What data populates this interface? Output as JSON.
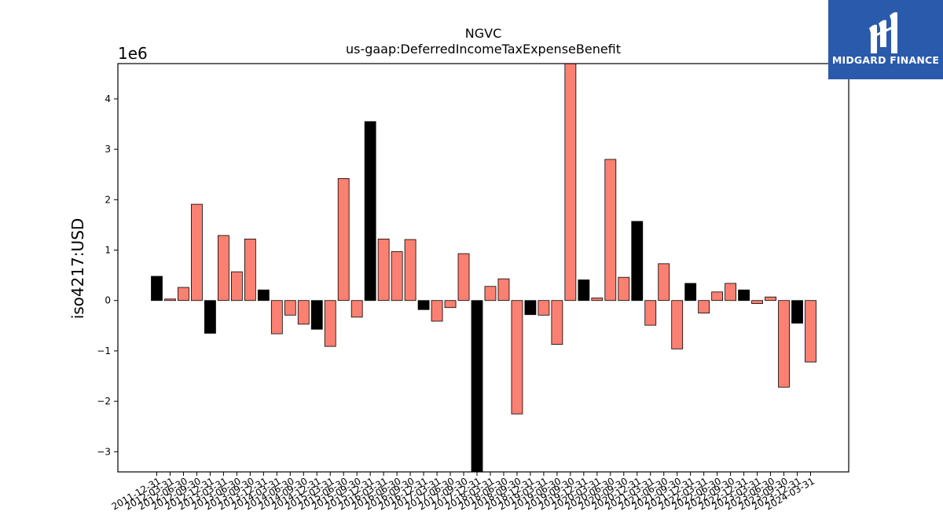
{
  "title": "NGVC",
  "subtitle": "us-gaap:DeferredIncomeTaxExpenseBenefit",
  "logo": {
    "text": "MIDGARD FINANCE",
    "bg_color": "#2a5aac"
  },
  "chart_data": {
    "type": "bar",
    "title": "NGVC",
    "subtitle": "us-gaap:DeferredIncomeTaxExpenseBenefit",
    "xlabel": "",
    "ylabel": "iso4217:USD",
    "y_offset_label": "1e6",
    "ylim": [
      -3.4,
      4.7
    ],
    "yticks": [
      -3,
      -2,
      -1,
      0,
      1,
      2,
      3,
      4
    ],
    "ytick_labels": [
      "−3",
      "−2",
      "−1",
      "0",
      "1",
      "2",
      "3",
      "4"
    ],
    "grid": false,
    "colors": {
      "annual": "#000000",
      "quarterly": "#fa8072",
      "edge": "#000000"
    },
    "categories": [
      "2011-12-31",
      "2012-03-31",
      "2012-06-30",
      "2012-09-30",
      "2012-12-31",
      "2013-03-31",
      "2013-06-30",
      "2013-09-30",
      "2013-12-31",
      "2014-03-31",
      "2014-06-30",
      "2014-09-30",
      "2014-12-31",
      "2015-03-31",
      "2015-06-30",
      "2015-09-30",
      "2015-12-31",
      "2016-03-31",
      "2016-06-30",
      "2016-09-30",
      "2016-12-31",
      "2017-03-31",
      "2017-06-30",
      "2017-09-30",
      "2017-12-31",
      "2018-03-31",
      "2018-06-30",
      "2018-09-30",
      "2018-12-31",
      "2019-03-31",
      "2019-06-30",
      "2019-09-30",
      "2019-12-31",
      "2020-03-31",
      "2020-06-30",
      "2020-09-30",
      "2020-12-31",
      "2021-03-31",
      "2021-06-30",
      "2021-09-30",
      "2021-12-31",
      "2022-03-31",
      "2022-06-30",
      "2022-09-30",
      "2022-12-31",
      "2023-03-31",
      "2023-06-30",
      "2023-09-30",
      "2023-12-31",
      "2024-03-31"
    ],
    "values": [
      0.48,
      0.03,
      0.26,
      1.91,
      -0.65,
      1.29,
      0.57,
      1.22,
      0.21,
      -0.66,
      -0.29,
      -0.47,
      -0.57,
      -0.91,
      2.42,
      -0.33,
      3.55,
      1.22,
      0.97,
      1.21,
      -0.18,
      -0.41,
      -0.14,
      0.93,
      -3.4,
      0.28,
      0.43,
      -2.25,
      -0.28,
      -0.29,
      -0.87,
      4.7,
      0.41,
      0.05,
      2.8,
      0.46,
      1.57,
      -0.49,
      0.73,
      -0.96,
      0.34,
      -0.25,
      0.17,
      0.34,
      0.21,
      -0.06,
      0.07,
      -1.72,
      -0.45,
      -1.22
    ],
    "annual": [
      true,
      false,
      false,
      false,
      true,
      false,
      false,
      false,
      true,
      false,
      false,
      false,
      true,
      false,
      false,
      false,
      true,
      false,
      false,
      false,
      true,
      false,
      false,
      false,
      true,
      false,
      false,
      false,
      true,
      false,
      false,
      false,
      true,
      false,
      false,
      false,
      true,
      false,
      false,
      false,
      true,
      false,
      false,
      false,
      true,
      false,
      false,
      false,
      true,
      false
    ]
  }
}
